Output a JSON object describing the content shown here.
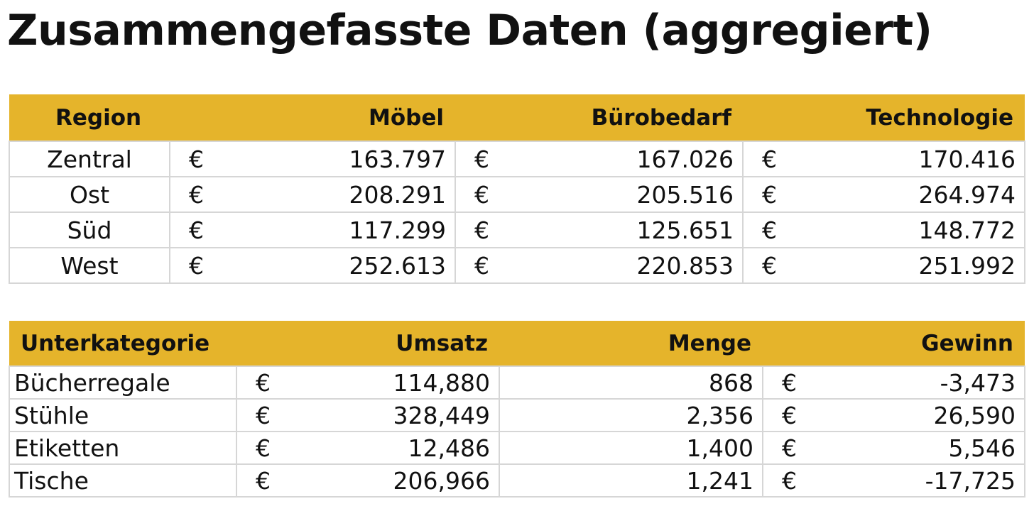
{
  "title": "Zusammengefasste Daten (aggregiert)",
  "table1": {
    "headers": [
      "Region",
      "Möbel",
      "Bürobedarf",
      "Technologie"
    ],
    "rows": [
      [
        "Zentral",
        "€",
        "163.797",
        "€",
        "167.026",
        "€",
        "170.416"
      ],
      [
        "Ost",
        "€",
        "208.291",
        "€",
        "205.516",
        "€",
        "264.974"
      ],
      [
        "Süd",
        "€",
        "117.299",
        "€",
        "125.651",
        "€",
        "148.772"
      ],
      [
        "West",
        "€",
        "252.613",
        "€",
        "220.853",
        "€",
        "251.992"
      ]
    ]
  },
  "table2": {
    "headers": [
      "Unterkategorie",
      "Umsatz",
      "Menge",
      "Gewinn"
    ],
    "rows": [
      [
        "Bücherregale",
        "€",
        "114,880",
        "868",
        "€",
        "-3,473"
      ],
      [
        "Stühle",
        "€",
        "328,449",
        "2,356",
        "€",
        "26,590"
      ],
      [
        "Etiketten",
        "€",
        "12,486",
        "1,400",
        "€",
        "5,546"
      ],
      [
        "Tische",
        "€",
        "206,966",
        "1,241",
        "€",
        "-17,725"
      ]
    ]
  }
}
